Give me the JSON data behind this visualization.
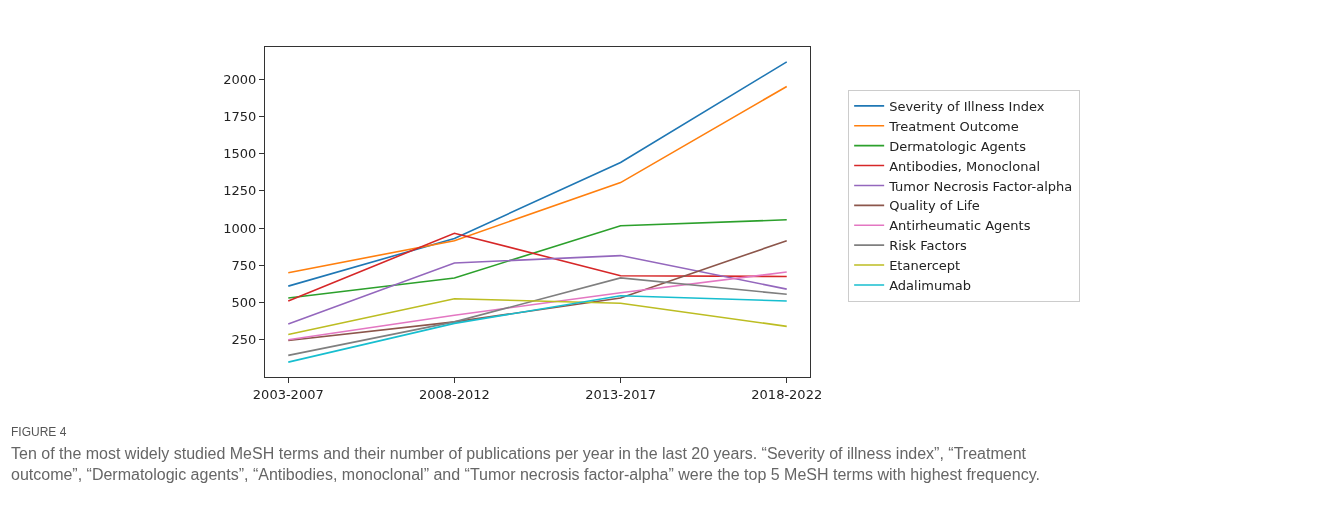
{
  "chart_data": {
    "type": "line",
    "categories": [
      "2003-2007",
      "2008-2012",
      "2013-2017",
      "2018-2022"
    ],
    "ylim": [
      0,
      2215
    ],
    "yticks": [
      250,
      500,
      750,
      1000,
      1250,
      1500,
      1750,
      2000
    ],
    "legend": "right",
    "marker": "none",
    "line_style": "solid",
    "series": [
      {
        "name": "Severity of Illness Index",
        "color": "#1f77b4",
        "values": [
          610,
          930,
          1440,
          2115
        ]
      },
      {
        "name": "Treatment Outcome",
        "color": "#ff7f0e",
        "values": [
          700,
          915,
          1305,
          1950
        ]
      },
      {
        "name": "Dermatologic Agents",
        "color": "#2ca02c",
        "values": [
          530,
          665,
          1015,
          1055
        ]
      },
      {
        "name": "Antibodies, Monoclonal",
        "color": "#d62728",
        "values": [
          510,
          965,
          680,
          675
        ]
      },
      {
        "name": "Tumor Necrosis Factor-alpha",
        "color": "#9467bd",
        "values": [
          355,
          765,
          815,
          590
        ]
      },
      {
        "name": "Quality of Life",
        "color": "#8c564b",
        "values": [
          245,
          370,
          530,
          915
        ]
      },
      {
        "name": "Antirheumatic Agents",
        "color": "#e377c2",
        "values": [
          250,
          415,
          565,
          705
        ]
      },
      {
        "name": "Risk Factors",
        "color": "#7f7f7f",
        "values": [
          145,
          370,
          665,
          555
        ]
      },
      {
        "name": "Etanercept",
        "color": "#bcbd22",
        "values": [
          285,
          525,
          495,
          340
        ]
      },
      {
        "name": "Adalimumab",
        "color": "#17becf",
        "values": [
          100,
          360,
          545,
          510
        ]
      }
    ],
    "annotations": [
      "FIGURE 4",
      "Ten of the most widely studied MeSH terms and their number of publications per year in the last 20 years. “Severity of illness index”, “Treatment outcome”, “Dermatologic agents”, “Antibodies, monoclonal” and “Tumor necrosis factor-alpha” were the top 5 MeSH terms with highest frequency."
    ]
  }
}
